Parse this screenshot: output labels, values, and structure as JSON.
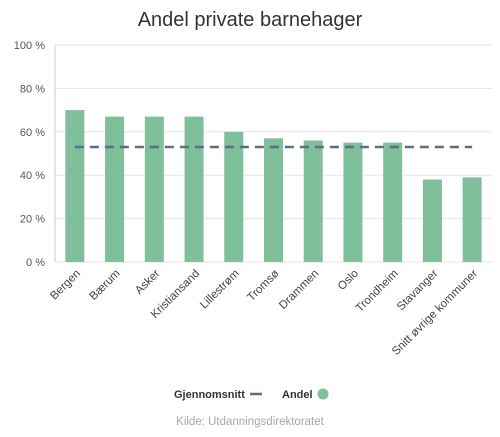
{
  "chart_data": {
    "type": "bar",
    "title": "Andel private barnehager",
    "categories": [
      "Bergen",
      "Bærum",
      "Asker",
      "Kristiansand",
      "Lillestrøm",
      "Tromsø",
      "Drammen",
      "Oslo",
      "Trondheim",
      "Stavanger",
      "Snitt øvrige kommuner"
    ],
    "series": [
      {
        "name": "Andel",
        "type": "bar",
        "values": [
          70,
          67,
          67,
          67,
          60,
          57,
          56,
          55,
          55,
          38,
          39
        ],
        "color": "#7fbf9a"
      },
      {
        "name": "Gjennomsnitt",
        "type": "line",
        "values": [
          53,
          53,
          53,
          53,
          53,
          53,
          53,
          53,
          53,
          53,
          53
        ],
        "color": "#5a6f86"
      }
    ],
    "ylim": [
      0,
      100
    ],
    "yticks": [
      0,
      20,
      40,
      60,
      80,
      100
    ],
    "ytick_labels": [
      "0 %",
      "20 %",
      "40 %",
      "60 %",
      "80 %",
      "100 %"
    ],
    "grid": true,
    "legend_position": "bottom",
    "legend": [
      {
        "label": "Gjennomsnitt",
        "symbol": "line",
        "color": "#5a6f86"
      },
      {
        "label": "Andel",
        "symbol": "circle",
        "color": "#7fbf9a"
      }
    ],
    "source": "Kilde: Utdanningsdirektoratet"
  }
}
